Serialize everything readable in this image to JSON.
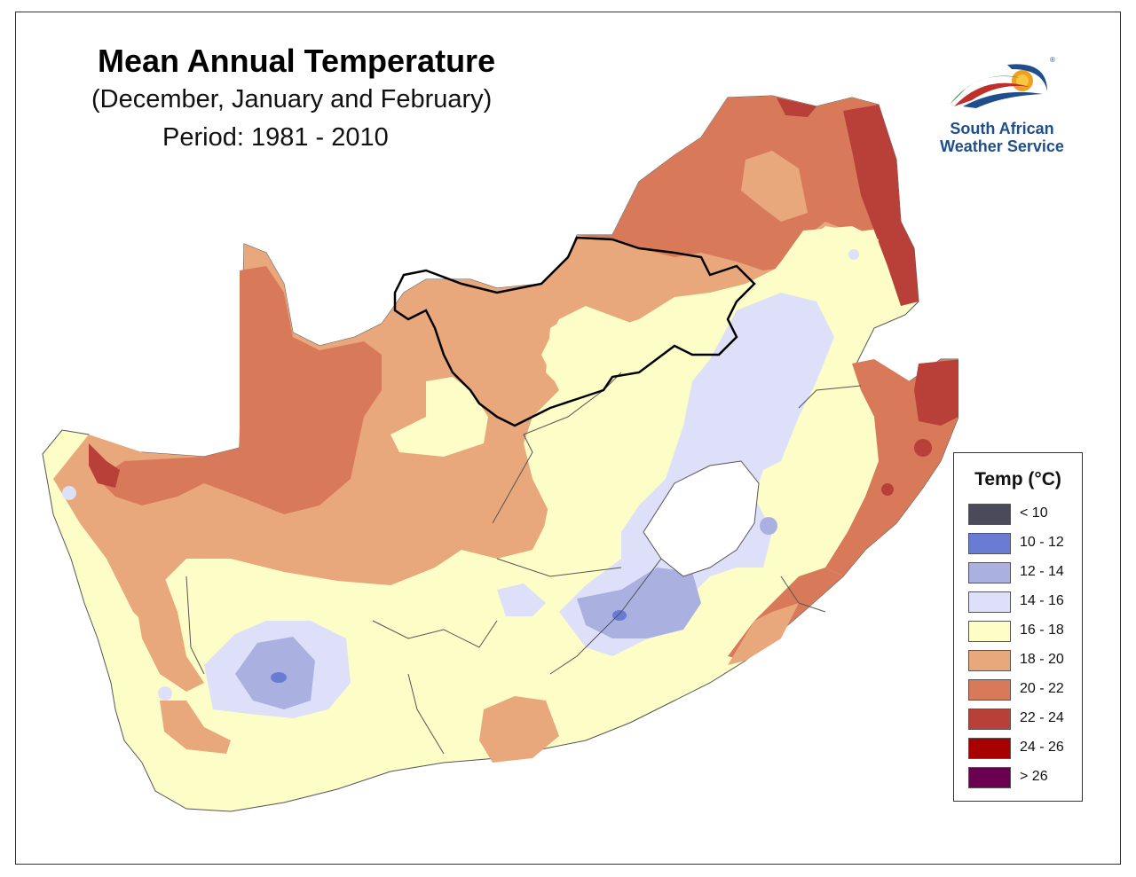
{
  "title": "Mean Annual Temperature",
  "subtitle": "(December, January and February)",
  "period": "Period: 1981 - 2010",
  "logo": {
    "line1": "South African",
    "line2": "Weather Service",
    "icon": "saws-sun-swoosh-icon"
  },
  "legend": {
    "title": "Temp (°C)",
    "items": [
      {
        "label": "< 10",
        "color": "#4a4a5a"
      },
      {
        "label": "10 - 12",
        "color": "#6a7bd4"
      },
      {
        "label": "12 - 14",
        "color": "#aab0e0"
      },
      {
        "label": "14 - 16",
        "color": "#dde0f8"
      },
      {
        "label": "16 - 18",
        "color": "#fdfdc8"
      },
      {
        "label": "18 - 20",
        "color": "#e9a77c"
      },
      {
        "label": "20 - 22",
        "color": "#d87a5a"
      },
      {
        "label": "22 - 24",
        "color": "#b84038"
      },
      {
        "label": "24 - 26",
        "color": "#a80000"
      },
      {
        "label": "> 26",
        "color": "#6a0050"
      }
    ]
  }
}
